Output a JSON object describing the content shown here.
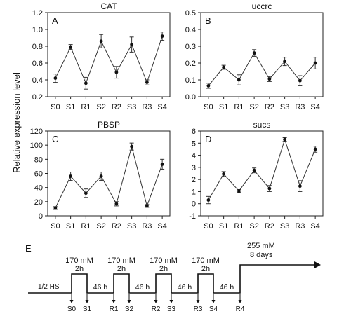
{
  "figure": {
    "ylabel": "Relative expression level"
  },
  "chart_data": [
    {
      "type": "line",
      "panel_letter": "A",
      "title": "CAT",
      "categories": [
        "S0",
        "S1",
        "R1",
        "S2",
        "R2",
        "S3",
        "R3",
        "S4"
      ],
      "values": [
        0.42,
        0.79,
        0.36,
        0.86,
        0.49,
        0.82,
        0.37,
        0.92
      ],
      "errors": [
        0.05,
        0.03,
        0.07,
        0.08,
        0.07,
        0.09,
        0.03,
        0.05
      ],
      "ylim": [
        0.2,
        1.2
      ],
      "yticks": [
        "0.2",
        "0.4",
        "0.6",
        "0.8",
        "1.0",
        "1.2"
      ],
      "grid": false
    },
    {
      "type": "line",
      "panel_letter": "B",
      "title": "uccrc",
      "categories": [
        "S0",
        "S1",
        "R1",
        "S2",
        "R2",
        "S3",
        "R3",
        "S4"
      ],
      "values": [
        0.065,
        0.175,
        0.1,
        0.26,
        0.105,
        0.21,
        0.095,
        0.2
      ],
      "errors": [
        0.015,
        0.012,
        0.03,
        0.02,
        0.015,
        0.025,
        0.03,
        0.035
      ],
      "ylim": [
        0,
        0.5
      ],
      "yticks": [
        "0.0",
        "0.1",
        "0.2",
        "0.3",
        "0.4",
        "0.5"
      ],
      "grid": false
    },
    {
      "type": "line",
      "panel_letter": "C",
      "title": "PBSP",
      "categories": [
        "S0",
        "S1",
        "R1",
        "S2",
        "R2",
        "S3",
        "R3",
        "S4"
      ],
      "values": [
        11,
        56,
        32,
        56,
        17,
        98,
        14,
        73
      ],
      "errors": [
        2,
        6,
        6,
        6,
        3,
        5,
        2,
        7
      ],
      "ylim": [
        0,
        120
      ],
      "yticks": [
        "0",
        "20",
        "40",
        "60",
        "80",
        "100",
        "120"
      ],
      "grid": false
    },
    {
      "type": "line",
      "panel_letter": "D",
      "title": "sucs",
      "categories": [
        "S0",
        "S1",
        "R1",
        "S2",
        "R2",
        "S3",
        "R3",
        "S4"
      ],
      "values": [
        0.3,
        2.45,
        1.05,
        2.75,
        1.25,
        5.3,
        1.45,
        4.5
      ],
      "errors": [
        0.3,
        0.2,
        0.12,
        0.2,
        0.25,
        0.15,
        0.45,
        0.25
      ],
      "ylim": [
        -1,
        6
      ],
      "yticks": [
        "-1",
        "0",
        "1",
        "2",
        "3",
        "4",
        "5",
        "6"
      ],
      "grid": false
    }
  ],
  "schematic": {
    "letter": "E",
    "baseline_label": "1/2 HS",
    "pulses": [
      {
        "conc": "170 mM",
        "dur": "2h"
      },
      {
        "conc": "170 mM",
        "dur": "2h"
      },
      {
        "conc": "170 mM",
        "dur": "2h"
      },
      {
        "conc": "170 mM",
        "dur": "2h"
      }
    ],
    "recovery_labels": [
      "46 h",
      "46 h",
      "46 h",
      "46 h"
    ],
    "final_conc": "255 mM",
    "final_dur": "8 days",
    "sample_points": [
      "S0",
      "S1",
      "R1",
      "S2",
      "R2",
      "S3",
      "R3",
      "S4",
      "R4"
    ]
  }
}
